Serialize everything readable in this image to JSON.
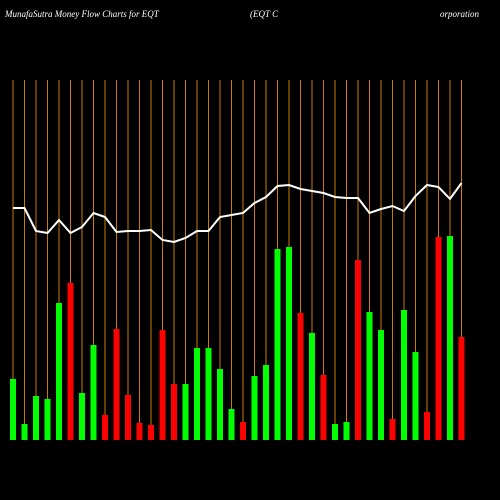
{
  "chart_data": {
    "type": "bar",
    "title": "MunafaSutra  Money Flow  Charts for EQT",
    "subtitle_parts": [
      "(EQT C",
      "orporation"
    ],
    "ylim": [
      0,
      360
    ],
    "values": [
      61,
      16,
      44,
      41,
      137,
      157,
      47,
      95,
      25,
      111,
      45,
      17,
      15,
      110,
      56,
      56,
      92,
      92,
      71,
      31,
      18,
      64,
      75,
      191,
      193,
      127,
      107,
      65,
      16,
      18,
      180,
      128,
      110,
      21,
      130,
      88,
      28,
      203,
      204,
      103
    ],
    "colors": [
      "#00ff00",
      "#00ff00",
      "#00ff00",
      "#00ff00",
      "#00ff00",
      "#ff0000",
      "#00ff00",
      "#00ff00",
      "#ff0000",
      "#ff0000",
      "#ff0000",
      "#ff0000",
      "#ff0000",
      "#ff0000",
      "#ff0000",
      "#00ff00",
      "#00ff00",
      "#00ff00",
      "#00ff00",
      "#00ff00",
      "#ff0000",
      "#00ff00",
      "#00ff00",
      "#00ff00",
      "#00ff00",
      "#ff0000",
      "#00ff00",
      "#ff0000",
      "#00ff00",
      "#00ff00",
      "#ff0000",
      "#00ff00",
      "#00ff00",
      "#ff0000",
      "#00ff00",
      "#00ff00",
      "#ff0000",
      "#ff0000",
      "#00ff00",
      "#ff0000"
    ],
    "line_values": [
      232,
      232,
      209,
      207,
      220,
      207,
      213,
      227,
      223,
      208,
      209,
      209,
      210,
      200,
      198,
      202,
      209,
      209,
      223,
      225,
      227,
      237,
      243,
      254,
      255,
      251,
      249,
      247,
      243,
      242,
      242,
      227,
      231,
      234,
      229,
      244,
      255,
      253,
      241,
      257
    ],
    "line_color": "#ffffff",
    "grid_color": "#cc7a00"
  }
}
